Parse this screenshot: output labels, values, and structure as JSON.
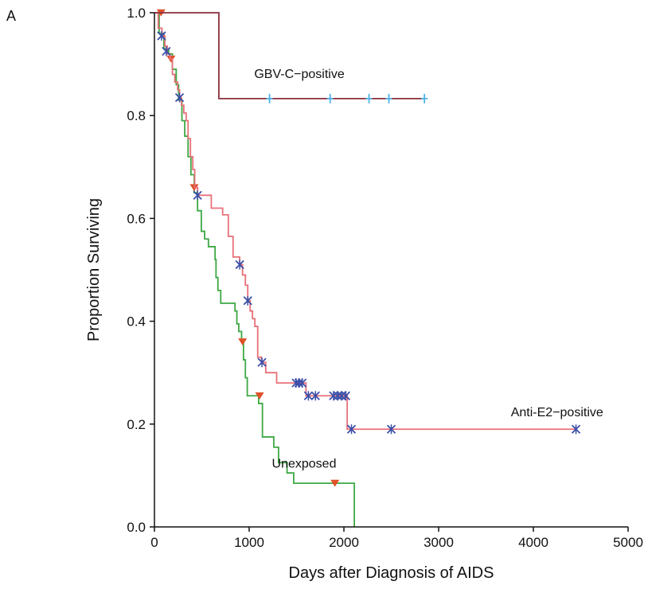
{
  "panel_label": "A",
  "chart_data": {
    "type": "line",
    "title": "",
    "xlabel": "Days after Diagnosis of AIDS",
    "ylabel": "Proportion Surviving",
    "xlim": [
      0,
      5000
    ],
    "ylim": [
      0,
      1.0
    ],
    "x_ticks": [
      "0",
      "1000",
      "2000",
      "3000",
      "4000",
      "5000"
    ],
    "y_ticks": [
      "0.0",
      "0.2",
      "0.4",
      "0.6",
      "0.8",
      "1.0"
    ],
    "grid": false,
    "legend": "none",
    "step": true,
    "series": [
      {
        "name": "GBV-C−positive",
        "color": "#8B2E3C",
        "marker": "cross",
        "marker_color": "#4FB3E8",
        "steps": [
          [
            0,
            1.0
          ],
          [
            680,
            0.833
          ],
          [
            2850,
            0.833
          ]
        ],
        "censored": [
          [
            1215,
            0.833
          ],
          [
            1855,
            0.833
          ],
          [
            2265,
            0.833
          ],
          [
            2475,
            0.833
          ],
          [
            2850,
            0.833
          ]
        ],
        "label_at": [
          1530,
          0.873
        ]
      },
      {
        "name": "Anti-E2−positive",
        "color": "#E8707A",
        "marker": "star",
        "marker_color": "#3A4FA8",
        "steps": [
          [
            0,
            1.0
          ],
          [
            40,
            0.97
          ],
          [
            80,
            0.955
          ],
          [
            110,
            0.935
          ],
          [
            135,
            0.92
          ],
          [
            165,
            0.91
          ],
          [
            190,
            0.88
          ],
          [
            215,
            0.865
          ],
          [
            245,
            0.85
          ],
          [
            265,
            0.835
          ],
          [
            285,
            0.82
          ],
          [
            310,
            0.805
          ],
          [
            335,
            0.79
          ],
          [
            355,
            0.755
          ],
          [
            380,
            0.72
          ],
          [
            405,
            0.695
          ],
          [
            425,
            0.66
          ],
          [
            455,
            0.645
          ],
          [
            600,
            0.62
          ],
          [
            720,
            0.607
          ],
          [
            780,
            0.565
          ],
          [
            830,
            0.525
          ],
          [
            900,
            0.51
          ],
          [
            930,
            0.49
          ],
          [
            960,
            0.47
          ],
          [
            985,
            0.44
          ],
          [
            1010,
            0.42
          ],
          [
            1035,
            0.405
          ],
          [
            1060,
            0.39
          ],
          [
            1090,
            0.33
          ],
          [
            1130,
            0.32
          ],
          [
            1175,
            0.3
          ],
          [
            1290,
            0.28
          ],
          [
            1600,
            0.255
          ],
          [
            2035,
            0.19
          ],
          [
            4450,
            0.19
          ]
        ],
        "censored": [
          [
            75,
            0.955
          ],
          [
            125,
            0.925
          ],
          [
            265,
            0.835
          ],
          [
            455,
            0.645
          ],
          [
            900,
            0.51
          ],
          [
            985,
            0.44
          ],
          [
            1135,
            0.32
          ],
          [
            1495,
            0.28
          ],
          [
            1525,
            0.28
          ],
          [
            1560,
            0.28
          ],
          [
            1625,
            0.255
          ],
          [
            1700,
            0.255
          ],
          [
            1890,
            0.255
          ],
          [
            1935,
            0.255
          ],
          [
            1975,
            0.255
          ],
          [
            2020,
            0.255
          ],
          [
            2080,
            0.19
          ],
          [
            2500,
            0.19
          ],
          [
            4450,
            0.19
          ]
        ],
        "label_at": [
          4250,
          0.215
        ]
      },
      {
        "name": "Unexposed",
        "color": "#3DA844",
        "marker": "triangle",
        "marker_color": "#E0512A",
        "steps": [
          [
            0,
            1.0
          ],
          [
            50,
            0.96
          ],
          [
            100,
            0.93
          ],
          [
            150,
            0.92
          ],
          [
            190,
            0.89
          ],
          [
            230,
            0.86
          ],
          [
            255,
            0.83
          ],
          [
            290,
            0.79
          ],
          [
            320,
            0.76
          ],
          [
            355,
            0.72
          ],
          [
            385,
            0.685
          ],
          [
            420,
            0.65
          ],
          [
            455,
            0.615
          ],
          [
            495,
            0.575
          ],
          [
            530,
            0.56
          ],
          [
            570,
            0.545
          ],
          [
            640,
            0.52
          ],
          [
            650,
            0.485
          ],
          [
            670,
            0.46
          ],
          [
            700,
            0.435
          ],
          [
            850,
            0.42
          ],
          [
            870,
            0.395
          ],
          [
            890,
            0.38
          ],
          [
            920,
            0.36
          ],
          [
            940,
            0.325
          ],
          [
            960,
            0.29
          ],
          [
            980,
            0.255
          ],
          [
            1100,
            0.24
          ],
          [
            1140,
            0.175
          ],
          [
            1260,
            0.155
          ],
          [
            1310,
            0.125
          ],
          [
            1400,
            0.105
          ],
          [
            1470,
            0.085
          ],
          [
            2110,
            0.0
          ]
        ],
        "censored": [
          [
            70,
            1.0
          ],
          [
            175,
            0.91
          ],
          [
            420,
            0.66
          ],
          [
            930,
            0.36
          ],
          [
            1110,
            0.255
          ],
          [
            1905,
            0.085
          ]
        ],
        "label_at": [
          1580,
          0.115
        ]
      }
    ]
  }
}
